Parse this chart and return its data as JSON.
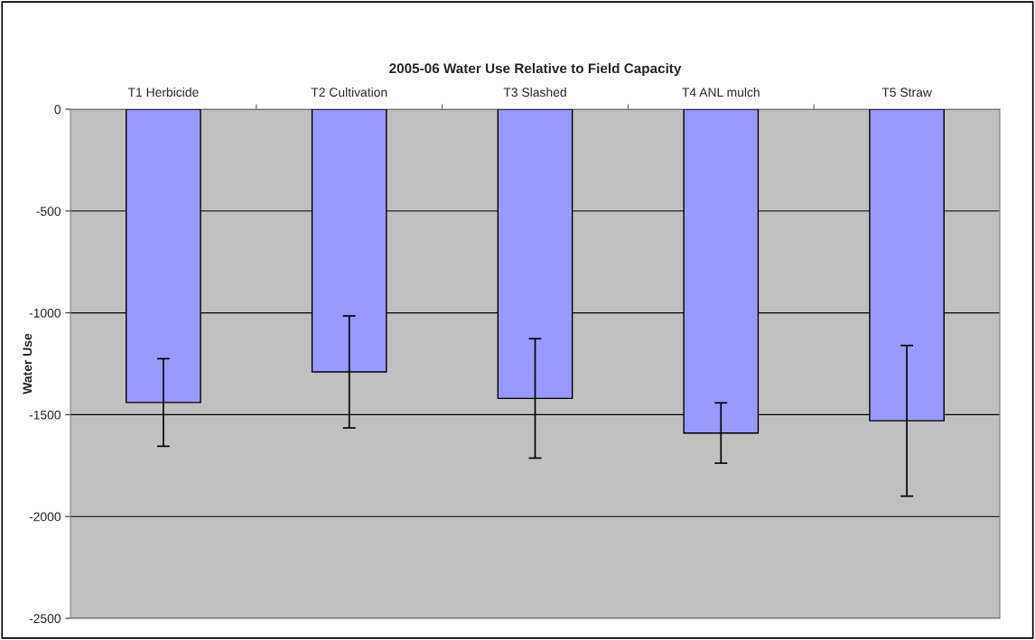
{
  "chart_data": {
    "type": "bar",
    "title": "2005-06 Water Use Relative to Field Capacity",
    "ylabel": "Water Use",
    "categories": [
      "T1 Herbicide",
      "T2 Cultivation",
      "T3 Slashed",
      "T4 ANL mulch",
      "T5 Straw"
    ],
    "values": [
      -1440,
      -1290,
      -1420,
      -1590,
      -1530
    ],
    "errors": [
      215,
      275,
      293,
      148,
      370
    ],
    "color": "#9999ff",
    "ylim": [
      -2500,
      0
    ],
    "yticks": [
      -2500,
      -2000,
      -1500,
      -1000,
      -500,
      0
    ],
    "grid": "y",
    "legend": false
  }
}
